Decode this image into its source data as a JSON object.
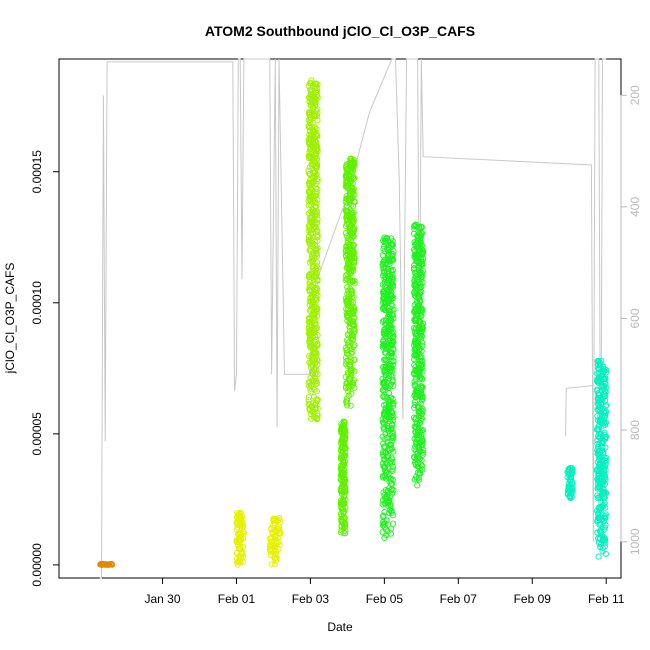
{
  "chart_data": {
    "type": "scatter",
    "title": "ATOM2 Southbound jClO_Cl_O3P_CAFS",
    "xlabel": "Date",
    "ylabel": "jClO_Cl_O3P_CAFS",
    "x_unit": "days since Jan 28 (axis dates shown as tick labels)",
    "xlim_days": [
      -0.8,
      14.4
    ],
    "ylim": [
      -5e-06,
      0.000193
    ],
    "x_ticks": [
      {
        "day": 2,
        "label": "Jan 30"
      },
      {
        "day": 4,
        "label": "Feb 01"
      },
      {
        "day": 6,
        "label": "Feb 03"
      },
      {
        "day": 8,
        "label": "Feb 05"
      },
      {
        "day": 10,
        "label": "Feb 07"
      },
      {
        "day": 12,
        "label": "Feb 09"
      },
      {
        "day": 14,
        "label": "Feb 11"
      }
    ],
    "y_ticks": [
      {
        "value": 0.0,
        "label": "0.00000"
      },
      {
        "value": 5e-05,
        "label": "0.00005"
      },
      {
        "value": 0.0001,
        "label": "0.00010"
      },
      {
        "value": 0.00015,
        "label": "0.00015"
      }
    ],
    "right_axis": {
      "label_color": "#b8b8b8",
      "ylim": [
        1065,
        135
      ],
      "ticks": [
        200,
        400,
        600,
        800,
        1000
      ]
    },
    "series": [
      {
        "color": "#e08a00",
        "clusters": [
          {
            "x0": 0.3,
            "x1": 0.65,
            "ymin": 0.0,
            "ymax": 3e-07
          }
        ]
      },
      {
        "color": "#e6f000",
        "clusters": [
          {
            "x0": 4.0,
            "x1": 4.2,
            "ymin": 0.0,
            "ymax": 2e-05
          },
          {
            "x0": 4.9,
            "x1": 5.2,
            "ymin": 0.0,
            "ymax": 1.8e-05
          }
        ]
      },
      {
        "color": "#9ff000",
        "clusters": [
          {
            "x0": 5.95,
            "x1": 6.2,
            "ymin": 5.5e-05,
            "ymax": 0.000185
          }
        ]
      },
      {
        "color": "#60f000",
        "clusters": [
          {
            "x0": 6.82,
            "x1": 6.95,
            "ymin": 1.2e-05,
            "ymax": 5.5e-05
          },
          {
            "x0": 6.95,
            "x1": 7.2,
            "ymin": 6e-05,
            "ymax": 0.000155
          }
        ]
      },
      {
        "color": "#20f020",
        "clusters": [
          {
            "x0": 7.95,
            "x1": 8.25,
            "ymin": 1e-05,
            "ymax": 0.000125
          },
          {
            "x0": 8.8,
            "x1": 9.05,
            "ymin": 3e-05,
            "ymax": 0.00013
          }
        ]
      },
      {
        "color": "#00f0c0",
        "clusters": [
          {
            "x0": 12.95,
            "x1": 13.1,
            "ymin": 2.5e-05,
            "ymax": 3.7e-05
          },
          {
            "x0": 13.75,
            "x1": 14.0,
            "ymin": 3e-06,
            "ymax": 7.8e-05
          }
        ]
      }
    ],
    "altitude_trace_color": "#c8c8c8",
    "altitude_trace": [
      [
        0.3,
        1065
      ],
      [
        0.35,
        1065
      ],
      [
        0.4,
        200
      ],
      [
        0.45,
        820
      ],
      [
        0.5,
        140
      ],
      [
        0.6,
        140
      ],
      [
        3.9,
        140
      ],
      [
        3.95,
        730
      ],
      [
        4.0,
        700
      ],
      [
        4.05,
        135
      ],
      [
        4.1,
        135
      ],
      [
        4.15,
        530
      ],
      [
        4.2,
        135
      ],
      [
        4.9,
        135
      ],
      [
        4.95,
        700
      ],
      [
        5.05,
        135
      ],
      [
        5.1,
        795
      ],
      [
        5.15,
        135
      ],
      [
        5.3,
        700
      ],
      [
        6.0,
        700
      ],
      [
        6.05,
        600
      ],
      [
        6.1,
        545
      ],
      [
        7.0,
        380
      ],
      [
        7.6,
        230
      ],
      [
        8.2,
        135
      ],
      [
        8.3,
        135
      ],
      [
        8.4,
        350
      ],
      [
        8.5,
        780
      ],
      [
        8.6,
        135
      ],
      [
        8.9,
        135
      ],
      [
        8.95,
        680
      ],
      [
        9.0,
        135
      ],
      [
        9.05,
        310
      ],
      [
        13.6,
        325
      ],
      [
        13.65,
        1000
      ],
      [
        13.7,
        135
      ],
      [
        13.8,
        135
      ],
      [
        13.85,
        990
      ],
      [
        13.9,
        135
      ],
      [
        14.0,
        135
      ]
    ],
    "altitude_trace_extra": [
      [
        12.9,
        810
      ],
      [
        12.92,
        725
      ],
      [
        13.65,
        720
      ]
    ]
  }
}
